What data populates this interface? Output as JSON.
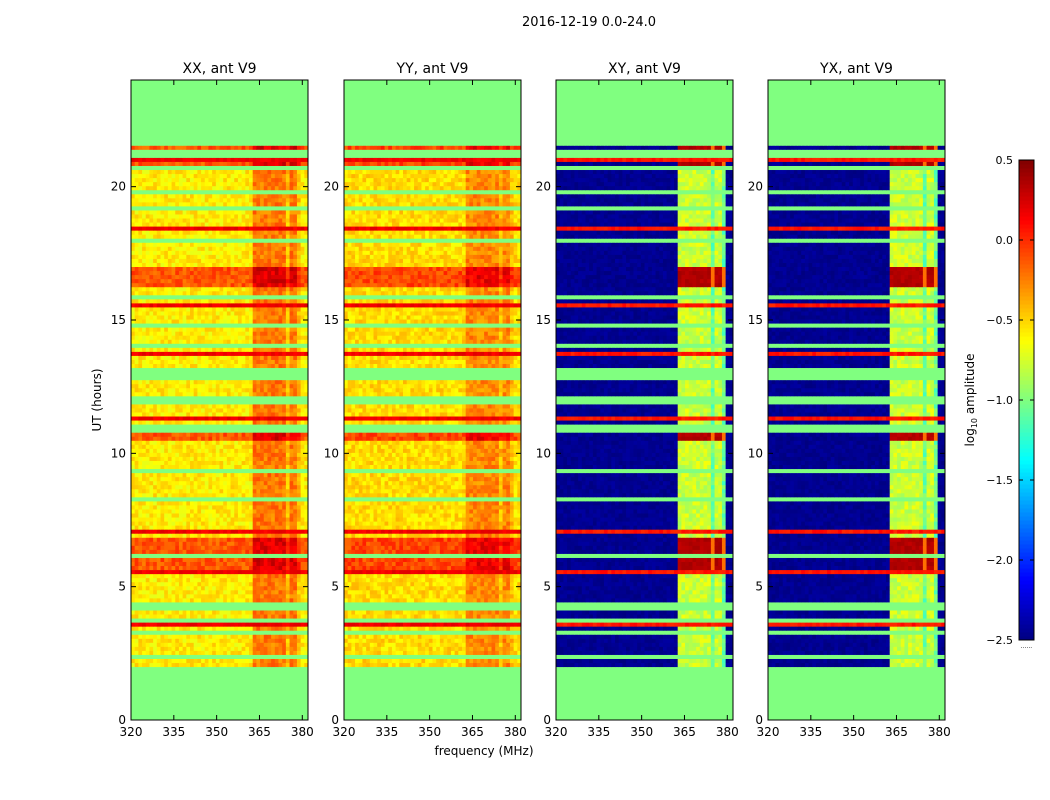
{
  "chart_data": {
    "type": "heatmap",
    "suptitle": "2016-12-19 0.0-24.0",
    "xlabel": "frequency (MHz)",
    "ylabel": "UT (hours)",
    "xlim": [
      320,
      382
    ],
    "ylim": [
      0,
      24
    ],
    "xticks": [
      320,
      335,
      350,
      365,
      380
    ],
    "yticks": [
      0,
      5,
      10,
      15,
      20
    ],
    "data_ut_range": [
      2.0,
      21.7
    ],
    "colorbar": {
      "label": "log₁₀ amplitude",
      "label_base": "log",
      "label_sub": "10",
      "label_rest": " amplitude",
      "range": [
        -2.5,
        0.5
      ],
      "ticks": [
        "0.5",
        "0.0",
        "−0.5",
        "−1.0",
        "−1.5",
        "−2.0",
        "−2.5"
      ],
      "colormap": "jet",
      "fill_value": -1.0,
      "extra_label": "......"
    },
    "panels": [
      {
        "name": "XX",
        "title": "XX, ant V9",
        "base": -0.55,
        "band_boost": 0.35,
        "cross": false
      },
      {
        "name": "YY",
        "title": "YY, ant V9",
        "base": -0.5,
        "band_boost": 0.25,
        "cross": false
      },
      {
        "name": "XY",
        "title": "XY, ant V9",
        "base": -2.5,
        "band_boost": 1.3,
        "cross": true
      },
      {
        "name": "YX",
        "title": "YX, ant V9",
        "base": -2.5,
        "band_boost": 1.3,
        "cross": true
      }
    ],
    "rfi_band_MHz": [
      362,
      379
    ],
    "rfi_channels_MHz": [
      [
        363,
        366
      ],
      [
        367,
        370
      ],
      [
        371,
        374
      ],
      [
        375,
        378
      ]
    ],
    "bright_bands_UT": [
      [
        5.6,
        6.9
      ],
      [
        10.5,
        11.1
      ],
      [
        16.3,
        17.0
      ],
      [
        20.8,
        21.7
      ]
    ]
  }
}
